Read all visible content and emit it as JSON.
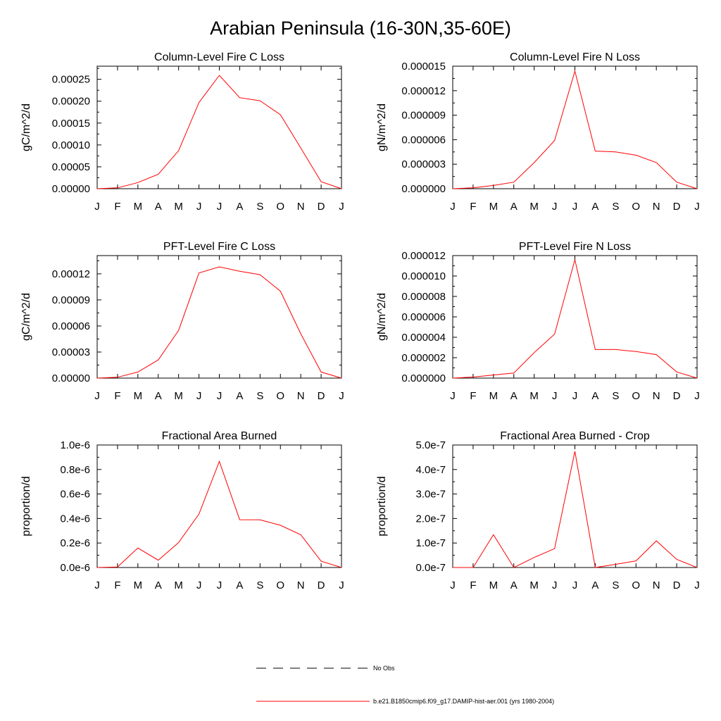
{
  "title": "Arabian Peninsula (16-30N,35-60E)",
  "legend": [
    {
      "label": "No Obs",
      "style": "dashed",
      "color": "#000000"
    },
    {
      "label": "b.e21.B1850cmip6.f09_g17.DAMIP-hist-aer.001 (yrs 1980-2004)",
      "style": "solid",
      "color": "#ff0000"
    }
  ],
  "chart_data": [
    {
      "type": "line",
      "title": "Column-Level Fire C Loss",
      "xlabel": "",
      "ylabel": "gC/m^2/d",
      "categories": [
        "J",
        "F",
        "M",
        "A",
        "M",
        "J",
        "J",
        "A",
        "S",
        "O",
        "N",
        "D",
        "J"
      ],
      "ylim": [
        0,
        0.00028
      ],
      "yticks": [
        0,
        5e-05,
        0.0001,
        0.00015,
        0.0002,
        0.00025
      ],
      "ytick_labels": [
        "0.00000",
        "0.00005",
        "0.00010",
        "0.00015",
        "0.00020",
        "0.00025"
      ],
      "series": [
        {
          "color": "#ff0000",
          "values": [
            0.0,
            2e-06,
            1.4e-05,
            3.3e-05,
            8.7e-05,
            0.000197,
            0.000259,
            0.000208,
            0.000201,
            0.000169,
            9.3e-05,
            1.6e-05,
            0.0
          ]
        }
      ]
    },
    {
      "type": "line",
      "title": "Column-Level Fire N Loss",
      "xlabel": "",
      "ylabel": "gN/m^2/d",
      "categories": [
        "J",
        "F",
        "M",
        "A",
        "M",
        "J",
        "J",
        "A",
        "S",
        "O",
        "N",
        "D",
        "J"
      ],
      "ylim": [
        0,
        1.5e-05
      ],
      "yticks": [
        0,
        3e-06,
        6e-06,
        9e-06,
        1.2e-05,
        1.5e-05
      ],
      "ytick_labels": [
        "0.000000",
        "0.000003",
        "0.000006",
        "0.000009",
        "0.000012",
        "0.000015"
      ],
      "series": [
        {
          "color": "#ff0000",
          "values": [
            0.0,
            1e-07,
            4e-07,
            8e-07,
            3.2e-06,
            5.9e-06,
            1.44e-05,
            4.6e-06,
            4.5e-06,
            4.1e-06,
            3.2e-06,
            8e-07,
            0.0
          ]
        }
      ]
    },
    {
      "type": "line",
      "title": "PFT-Level Fire C Loss",
      "xlabel": "",
      "ylabel": "gC/m^2/d",
      "categories": [
        "J",
        "F",
        "M",
        "A",
        "M",
        "J",
        "J",
        "A",
        "S",
        "O",
        "N",
        "D",
        "J"
      ],
      "ylim": [
        0,
        0.000141
      ],
      "yticks": [
        0,
        3e-05,
        6e-05,
        9e-05,
        0.00012
      ],
      "ytick_labels": [
        "0.00000",
        "0.00003",
        "0.00006",
        "0.00009",
        "0.00012"
      ],
      "series": [
        {
          "color": "#ff0000",
          "values": [
            0.0,
            1e-06,
            7e-06,
            2.1e-05,
            5.5e-05,
            0.000121,
            0.000128,
            0.000123,
            0.000119,
            0.0001,
            5.1e-05,
            7e-06,
            0.0
          ]
        }
      ]
    },
    {
      "type": "line",
      "title": "PFT-Level Fire N Loss",
      "xlabel": "",
      "ylabel": "gN/m^2/d",
      "categories": [
        "J",
        "F",
        "M",
        "A",
        "M",
        "J",
        "J",
        "A",
        "S",
        "O",
        "N",
        "D",
        "J"
      ],
      "ylim": [
        0,
        1.2e-05
      ],
      "yticks": [
        0,
        2e-06,
        4e-06,
        6e-06,
        8e-06,
        1e-05,
        1.2e-05
      ],
      "ytick_labels": [
        "0.000000",
        "0.000002",
        "0.000004",
        "0.000006",
        "0.000008",
        "0.000010",
        "0.000012"
      ],
      "series": [
        {
          "color": "#ff0000",
          "values": [
            0.0,
            1e-07,
            3e-07,
            5e-07,
            2.5e-06,
            4.3e-06,
            1.16e-05,
            2.8e-06,
            2.8e-06,
            2.6e-06,
            2.3e-06,
            6e-07,
            0.0
          ]
        }
      ]
    },
    {
      "type": "line",
      "title": "Fractional Area Burned",
      "xlabel": "",
      "ylabel": "proportion/d",
      "categories": [
        "J",
        "F",
        "M",
        "A",
        "M",
        "J",
        "J",
        "A",
        "S",
        "O",
        "N",
        "D",
        "J"
      ],
      "ylim": [
        0,
        1e-06
      ],
      "yticks": [
        0,
        2e-07,
        4e-07,
        6e-07,
        8e-07,
        1e-06
      ],
      "ytick_labels": [
        "0.0e-6",
        "0.2e-6",
        "0.4e-6",
        "0.6e-6",
        "0.8e-6",
        "1.0e-6"
      ],
      "series": [
        {
          "color": "#ff0000",
          "values": [
            0.0,
            4e-09,
            1.59e-07,
            6e-08,
            2.04e-07,
            4.37e-07,
            8.66e-07,
            3.9e-07,
            3.89e-07,
            3.45e-07,
            2.67e-07,
            5.1e-08,
            0.0
          ]
        }
      ]
    },
    {
      "type": "line",
      "title": "Fractional Area Burned - Crop",
      "xlabel": "",
      "ylabel": "proportion/d",
      "categories": [
        "J",
        "F",
        "M",
        "A",
        "M",
        "J",
        "J",
        "A",
        "S",
        "O",
        "N",
        "D",
        "J"
      ],
      "ylim": [
        0,
        5e-07
      ],
      "yticks": [
        0,
        1e-07,
        2e-07,
        3e-07,
        4e-07,
        5e-07
      ],
      "ytick_labels": [
        "0.0e-7",
        "1.0e-7",
        "2.0e-7",
        "3.0e-7",
        "4.0e-7",
        "5.0e-7"
      ],
      "series": [
        {
          "color": "#ff0000",
          "values": [
            0.0,
            0.0,
            1.34e-07,
            0.0,
            4.1e-08,
            7.7e-08,
            4.74e-07,
            0.0,
            1.3e-08,
            2.7e-08,
            1.09e-07,
            3.3e-08,
            0.0
          ]
        }
      ]
    }
  ]
}
